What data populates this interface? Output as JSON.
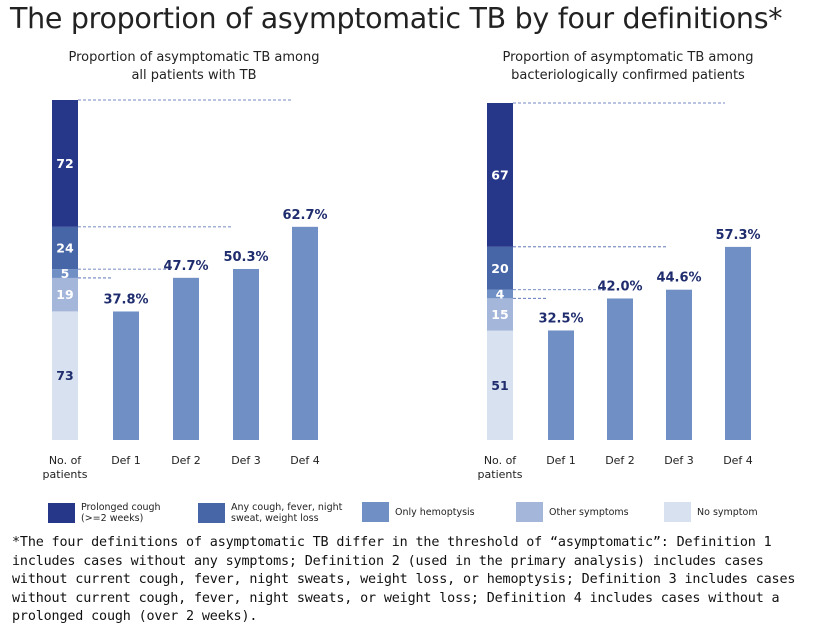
{
  "title": "The proportion of asymptomatic TB by four definitions*",
  "footnote": "*The four definitions of asymptomatic TB differ in the threshold of “asymptomatic”: Definition 1 includes cases without any symptoms; Definition 2  (used in the primary analysis) includes cases without current cough, fever, night sweats, weight loss, or hemoptysis; Definition 3 includes cases without current cough, fever, night sweats, or weight loss; Definition 4 includes cases without a prolonged cough (over 2 weeks).",
  "legend": [
    {
      "label": "Prolonged cough\n(>=2 weeks)",
      "color": "#26378a"
    },
    {
      "label": "Any cough, fever, night\nsweat, weight loss",
      "color": "#4766a8"
    },
    {
      "label": "Only hemoptysis",
      "color": "#6f8fc5"
    },
    {
      "label": "Other symptoms",
      "color": "#a5b6db"
    },
    {
      "label": "No symptom",
      "color": "#d8e1ef"
    }
  ],
  "colors": {
    "def_bar": "#6f8fc5",
    "value_label": "#1f2d6e",
    "segment_dark_text": "#1f2d6e",
    "segment_light_text": "#ffffff",
    "guide_line": "#4a63ae"
  },
  "chart_data": [
    {
      "type": "bar",
      "subtitle": "Proportion of asymptomatic TB among\nall patients with TB",
      "categories": [
        "No. of\npatients",
        "Def 1",
        "Def 2",
        "Def 3",
        "Def 4"
      ],
      "stack": [
        {
          "name": "No symptom",
          "value": 73
        },
        {
          "name": "Other symptoms",
          "value": 19
        },
        {
          "name": "Only hemoptysis",
          "value": 5
        },
        {
          "name": "Any cough, fever, night sweat, weight loss",
          "value": 24
        },
        {
          "name": "Prolonged cough (>=2 weeks)",
          "value": 72
        }
      ],
      "stack_total": 193,
      "definitions": [
        {
          "category": "Def 1",
          "value": 37.8,
          "label": "37.8%"
        },
        {
          "category": "Def 2",
          "value": 47.7,
          "label": "47.7%"
        },
        {
          "category": "Def 3",
          "value": 50.3,
          "label": "50.3%"
        },
        {
          "category": "Def 4",
          "value": 62.7,
          "label": "62.7%"
        }
      ]
    },
    {
      "type": "bar",
      "subtitle": "Proportion of asymptomatic TB among\nbacteriologically confirmed patients",
      "categories": [
        "No. of\npatients",
        "Def 1",
        "Def 2",
        "Def 3",
        "Def 4"
      ],
      "stack": [
        {
          "name": "No symptom",
          "value": 51
        },
        {
          "name": "Other symptoms",
          "value": 15
        },
        {
          "name": "Only hemoptysis",
          "value": 4
        },
        {
          "name": "Any cough, fever, night sweat, weight loss",
          "value": 20
        },
        {
          "name": "Prolonged cough (>=2 weeks)",
          "value": 67
        }
      ],
      "stack_total": 157,
      "definitions": [
        {
          "category": "Def 1",
          "value": 32.5,
          "label": "32.5%"
        },
        {
          "category": "Def 2",
          "value": 42.0,
          "label": "42.0%"
        },
        {
          "category": "Def 3",
          "value": 44.6,
          "label": "44.6%"
        },
        {
          "category": "Def 4",
          "value": 57.3,
          "label": "57.3%"
        }
      ]
    }
  ]
}
